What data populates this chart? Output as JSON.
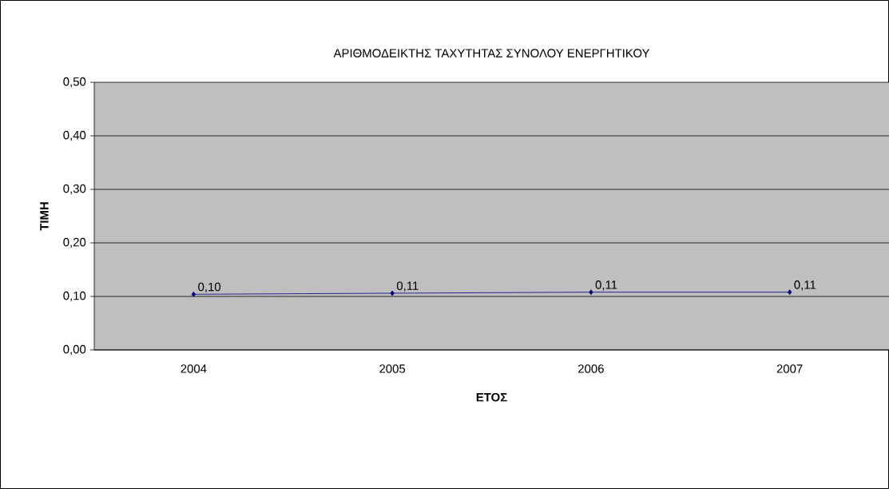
{
  "chart_data": {
    "type": "line",
    "title": "ΑΡΙΘΜΟΔΕΙΚΤΗΣ ΤΑΧΥΤΗΤΑΣ ΣΥΝΟΛΟΥ ΕΝΕΡΓΗΤΙΚΟΥ",
    "xlabel": "ΕΤΟΣ",
    "ylabel": "ΤΙΜΗ",
    "categories": [
      "2004",
      "2005",
      "2006",
      "2007"
    ],
    "series": [
      {
        "color": "#000080",
        "values": [
          0.104,
          0.106,
          0.108,
          0.108
        ],
        "value_labels": [
          "0,10",
          "0,11",
          "0,11",
          "0,11"
        ]
      }
    ],
    "ylim": [
      0,
      0.5
    ],
    "yticks": [
      {
        "value": 0,
        "label": "0,00"
      },
      {
        "value": 0.1,
        "label": "0,10"
      },
      {
        "value": 0.2,
        "label": "0,20"
      },
      {
        "value": 0.3,
        "label": "0,30"
      },
      {
        "value": 0.4,
        "label": "0,40"
      },
      {
        "value": 0.5,
        "label": "0,50"
      }
    ],
    "grid": "y",
    "marker": "diamond",
    "line_style": "solid"
  }
}
